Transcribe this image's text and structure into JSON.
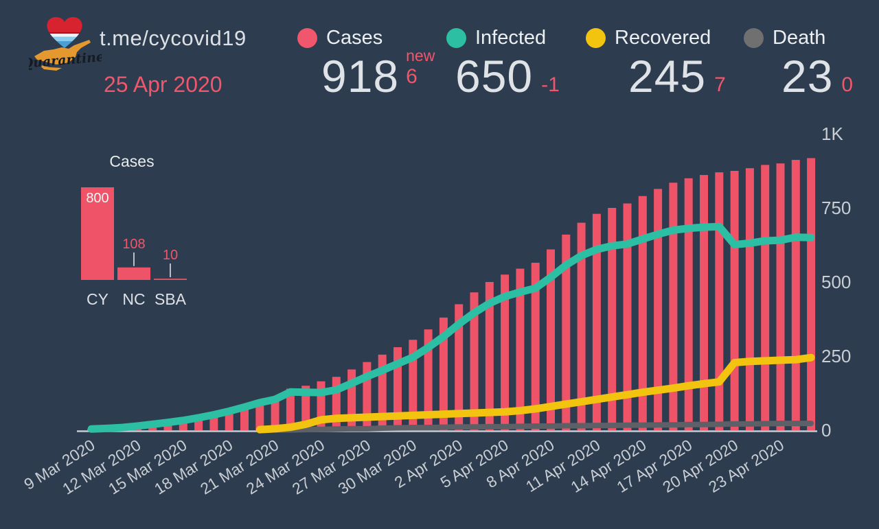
{
  "header": {
    "channel": "t.me/cycovid19",
    "date": "25 Apr 2020",
    "logo_text": "Quarantine"
  },
  "stats": [
    {
      "label": "Cases",
      "value": "918",
      "delta_label": "new",
      "delta": "6",
      "color": "#f0566c"
    },
    {
      "label": "Infected",
      "value": "650",
      "delta": "-1",
      "color": "#2dbfa4"
    },
    {
      "label": "Recovered",
      "value": "245",
      "delta": "7",
      "color": "#f2c40f"
    },
    {
      "label": "Death",
      "value": "23",
      "delta": "0",
      "color": "#707070"
    }
  ],
  "theme": {
    "background": "#2d3c4e",
    "accent_red": "#f0566c",
    "axis_text": "#c9ced4",
    "axis_line": "#c6cbd1"
  },
  "chart_data": [
    {
      "id": "regional-cases",
      "type": "bar",
      "title": "Cases",
      "categories": [
        "CY",
        "NC",
        "SBA"
      ],
      "values": [
        800,
        108,
        10
      ],
      "color": "#ee5368",
      "value_label_color_inside": "#f4f6f7",
      "value_label_color_outside": "#f0566c"
    },
    {
      "id": "timeline",
      "type": "combo",
      "x": [
        "9 Mar 2020",
        "10 Mar 2020",
        "11 Mar 2020",
        "12 Mar 2020",
        "13 Mar 2020",
        "14 Mar 2020",
        "15 Mar 2020",
        "16 Mar 2020",
        "17 Mar 2020",
        "18 Mar 2020",
        "19 Mar 2020",
        "20 Mar 2020",
        "21 Mar 2020",
        "22 Mar 2020",
        "23 Mar 2020",
        "24 Mar 2020",
        "25 Mar 2020",
        "26 Mar 2020",
        "27 Mar 2020",
        "28 Mar 2020",
        "29 Mar 2020",
        "30 Mar 2020",
        "31 Mar 2020",
        "1 Apr 2020",
        "2 Apr 2020",
        "3 Apr 2020",
        "4 Apr 2020",
        "5 Apr 2020",
        "6 Apr 2020",
        "7 Apr 2020",
        "8 Apr 2020",
        "9 Apr 2020",
        "10 Apr 2020",
        "11 Apr 2020",
        "12 Apr 2020",
        "13 Apr 2020",
        "14 Apr 2020",
        "15 Apr 2020",
        "16 Apr 2020",
        "17 Apr 2020",
        "18 Apr 2020",
        "19 Apr 2020",
        "20 Apr 2020",
        "21 Apr 2020",
        "22 Apr 2020",
        "23 Apr 2020",
        "24 Apr 2020",
        "25 Apr 2020"
      ],
      "x_tick_every": 3,
      "ylim": [
        0,
        1000
      ],
      "yticks": [
        {
          "value": 0,
          "label": "0"
        },
        {
          "value": 250,
          "label": "250"
        },
        {
          "value": 500,
          "label": "500"
        },
        {
          "value": 750,
          "label": "750"
        },
        {
          "value": 1000,
          "label": "1K"
        }
      ],
      "legend_position": "top",
      "grid": false,
      "series": [
        {
          "name": "Cases",
          "type": "bar",
          "color": "#ee5368",
          "values": [
            4,
            6,
            9,
            14,
            20,
            26,
            33,
            42,
            52,
            64,
            78,
            95,
            110,
            140,
            150,
            165,
            180,
            205,
            230,
            255,
            280,
            305,
            340,
            380,
            425,
            465,
            500,
            525,
            545,
            565,
            610,
            660,
            700,
            730,
            750,
            765,
            790,
            814,
            835,
            850,
            861,
            870,
            875,
            884,
            895,
            900,
            912,
            918
          ]
        },
        {
          "name": "Infected",
          "type": "line",
          "color": "#2dbfa4",
          "values": [
            4,
            6,
            9,
            14,
            20,
            26,
            33,
            42,
            52,
            64,
            78,
            93,
            104,
            129,
            128,
            127,
            136,
            158,
            181,
            202,
            224,
            246,
            279,
            316,
            358,
            396,
            428,
            451,
            466,
            479,
            516,
            557,
            589,
            610,
            622,
            628,
            645,
            661,
            675,
            681,
            685,
            687,
            626,
            631,
            639,
            641,
            651,
            650
          ]
        },
        {
          "name": "Recovered",
          "type": "line",
          "color": "#f2c40f",
          "values": [
            null,
            null,
            null,
            null,
            null,
            null,
            null,
            null,
            null,
            null,
            null,
            2,
            5,
            10,
            20,
            35,
            40,
            42,
            44,
            46,
            48,
            50,
            52,
            54,
            56,
            58,
            60,
            62,
            66,
            72,
            80,
            88,
            96,
            104,
            112,
            120,
            128,
            135,
            142,
            150,
            157,
            163,
            228,
            232,
            234,
            236,
            238,
            245
          ]
        },
        {
          "name": "Death",
          "type": "line",
          "color": "#5d6167",
          "values": [
            null,
            null,
            null,
            null,
            null,
            null,
            null,
            null,
            null,
            null,
            null,
            null,
            1,
            1,
            2,
            3,
            4,
            5,
            5,
            7,
            8,
            9,
            9,
            10,
            11,
            11,
            12,
            12,
            13,
            14,
            14,
            15,
            15,
            16,
            16,
            17,
            17,
            18,
            18,
            19,
            19,
            20,
            21,
            21,
            22,
            23,
            23,
            23
          ]
        }
      ]
    }
  ]
}
